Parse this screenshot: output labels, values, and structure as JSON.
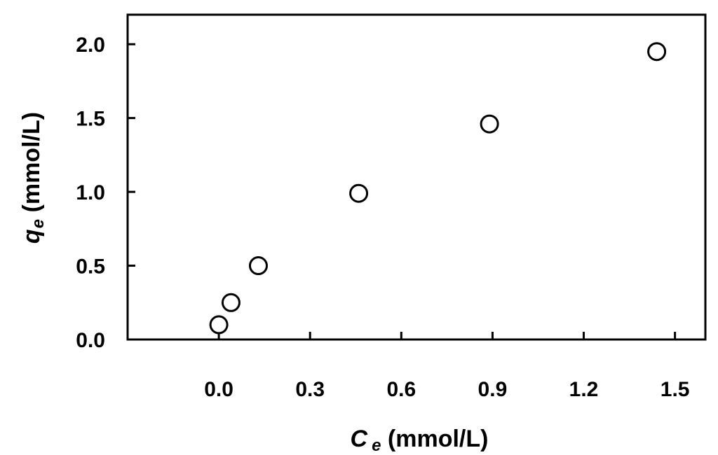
{
  "chart_data": {
    "type": "scatter",
    "title": "",
    "xlabel": {
      "symbol": "C",
      "subscript": "e",
      "unit": " (mmol/L)"
    },
    "ylabel": {
      "symbol": "q",
      "subscript": "e",
      "unit": " (mmol/L)"
    },
    "xlim": [
      -0.3,
      1.6
    ],
    "ylim": [
      0.0,
      2.2
    ],
    "xticks": [
      0.0,
      0.3,
      0.6,
      0.9,
      1.2,
      1.5
    ],
    "xtick_labels": [
      "0.0",
      "0.3",
      "0.6",
      "0.9",
      "1.2",
      "1.5"
    ],
    "yticks": [
      0.0,
      0.5,
      1.0,
      1.5,
      2.0
    ],
    "ytick_labels": [
      "0.0",
      "0.5",
      "1.0",
      "1.5",
      "2.0"
    ],
    "grid": false,
    "legend": "none",
    "marker": "open-circle",
    "colors": {
      "axis": "#000000",
      "marker_stroke": "#000000",
      "marker_fill": "#ffffff"
    },
    "series": [
      {
        "points": [
          {
            "x": 0.0,
            "y": 0.1
          },
          {
            "x": 0.04,
            "y": 0.25
          },
          {
            "x": 0.13,
            "y": 0.5
          },
          {
            "x": 0.46,
            "y": 0.99
          },
          {
            "x": 0.89,
            "y": 1.46
          },
          {
            "x": 1.44,
            "y": 1.95
          }
        ]
      }
    ]
  }
}
